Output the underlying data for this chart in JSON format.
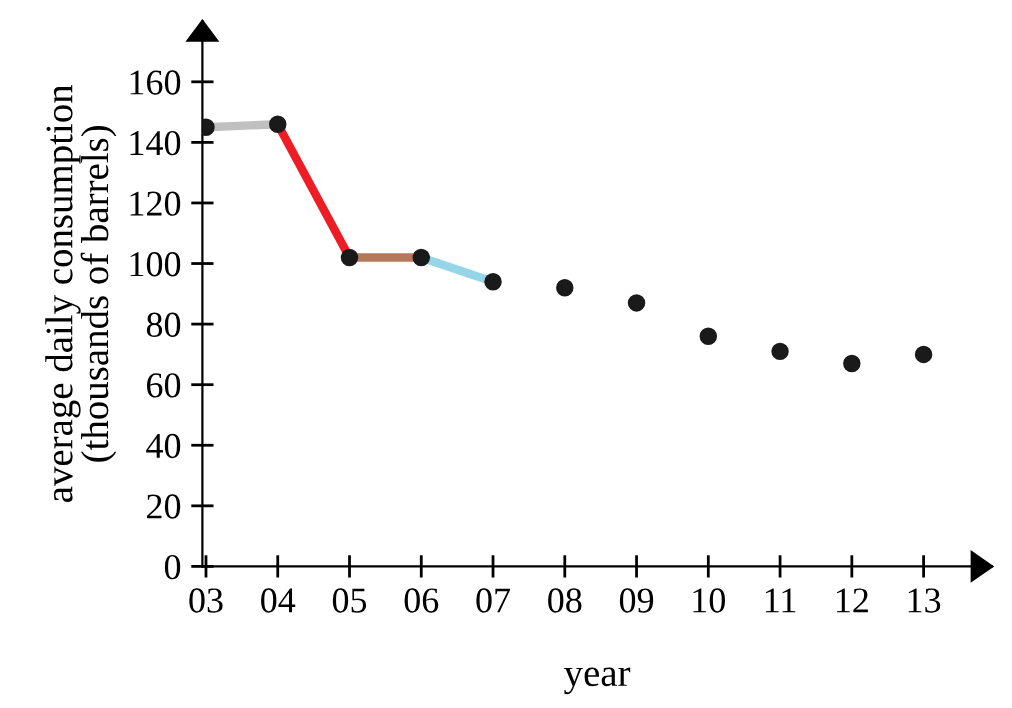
{
  "chart_data": {
    "type": "scatter",
    "xlabel": "year",
    "ylabel": "average daily consumption\n(thousands of barrels)",
    "categories": [
      "03",
      "04",
      "05",
      "06",
      "07",
      "08",
      "09",
      "10",
      "11",
      "12",
      "13"
    ],
    "ylim": [
      0,
      180
    ],
    "yticks": [
      0,
      20,
      40,
      60,
      80,
      100,
      120,
      140,
      160
    ],
    "grid": false,
    "legend": false,
    "series": [
      {
        "type": "line",
        "color": "#c0c0c0",
        "x": [
          "03",
          "04"
        ],
        "values": [
          145,
          146
        ],
        "marker": "none"
      },
      {
        "type": "line",
        "color": "#ee1c25",
        "x": [
          "04",
          "05"
        ],
        "values": [
          146,
          102
        ],
        "marker": "none"
      },
      {
        "type": "line",
        "color": "#b5785a",
        "x": [
          "05",
          "06"
        ],
        "values": [
          102,
          102
        ],
        "marker": "none"
      },
      {
        "type": "line",
        "color": "#94d6e8",
        "x": [
          "06",
          "07"
        ],
        "values": [
          102,
          94
        ],
        "marker": "none"
      },
      {
        "color": "#1a1a1a",
        "marker": "circle",
        "values": [
          145,
          146,
          102,
          102,
          94,
          92,
          87,
          76,
          71,
          67,
          70
        ]
      }
    ]
  }
}
